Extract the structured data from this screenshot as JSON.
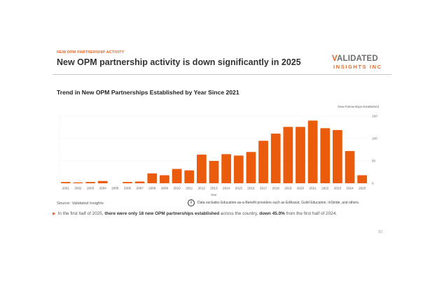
{
  "header": {
    "kicker": "NEW OPM PARTNERSHIP ACTIVITY",
    "title": "New OPM partnership activity is down significantly in 2025",
    "logo_line1_first": "V",
    "logo_line1_rest": "ALIDATED",
    "logo_line2": "INSIGHTS INC"
  },
  "colors": {
    "accent": "#e8692a",
    "bar": "#ea5b0c",
    "grid": "#e0e0e0"
  },
  "chart_data": {
    "type": "bar",
    "title": "Trend in New OPM Partnerships Established by Year Since 2021",
    "xlabel": "Year",
    "ylabel": "New Partnerships Established",
    "ylim": [
      0,
      150
    ],
    "yticks": [
      0,
      50,
      100,
      150
    ],
    "y_axis_position": "right",
    "grid": true,
    "categories": [
      "2001",
      "2002",
      "2003",
      "2004",
      "2005",
      "2006",
      "2007",
      "2008",
      "2009",
      "2010",
      "2011",
      "2012",
      "2013",
      "2014",
      "2015",
      "2016",
      "2017",
      "2018",
      "2019",
      "2020",
      "2021",
      "2022",
      "2023",
      "2024",
      "2025"
    ],
    "values": [
      3,
      1,
      3,
      5,
      0,
      3,
      4,
      22,
      18,
      32,
      29,
      64,
      50,
      65,
      62,
      70,
      95,
      111,
      126,
      126,
      140,
      123,
      119,
      72,
      18
    ]
  },
  "footer": {
    "source": "Source: Validated Insights",
    "note_icon": "info-icon",
    "note": "Data excludes Education-as-a-Benefit providers such as EdAssist, Guild Education, InStride, and others.",
    "bullet_icon": "triangle-right-icon",
    "bullet_pre": "In the first half of 2025, ",
    "bullet_bold1": "there were only 18 new OPM partnerships established",
    "bullet_mid": " across the country, ",
    "bullet_bold2": "down 45.0%",
    "bullet_post": " from the first half of 2024.",
    "page_number": "10"
  }
}
